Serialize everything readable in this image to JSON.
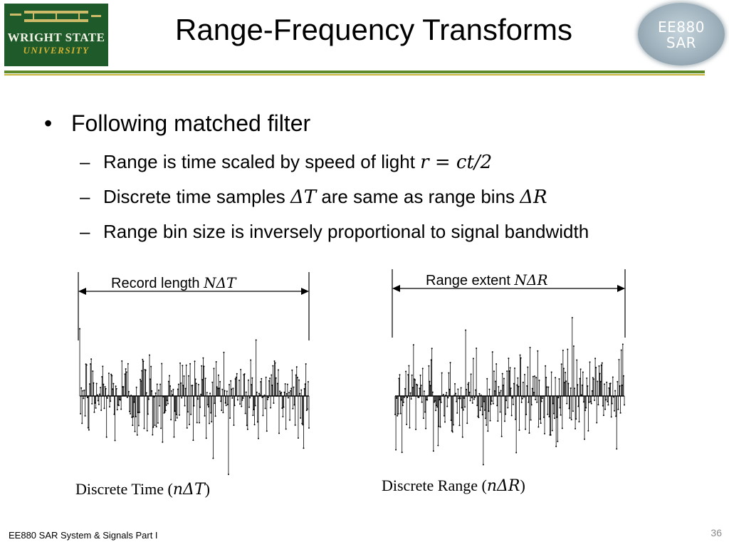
{
  "header": {
    "logo_line1": "WRIGHT STATE",
    "logo_line2": "UNIVERSITY",
    "title": "Range-Frequency Transforms",
    "badge_line1": "EE880",
    "badge_line2": "SAR"
  },
  "bullets": {
    "main": "Following matched filter",
    "sub1": {
      "text": "Range is time scaled by speed of light ",
      "math": "r = ct/2"
    },
    "sub2": {
      "text_a": "Discrete time samples ",
      "math_a": "ΔT",
      "text_b": " are same as range bins ",
      "math_b": "ΔR"
    },
    "sub3": {
      "text": "Range bin size is inversely proportional to signal bandwidth"
    },
    "bullet_char": "•",
    "dash_char": "–"
  },
  "figures": {
    "left": {
      "label_text": "Record length ",
      "label_math": "NΔT",
      "caption_a": "Discrete Time (",
      "caption_math": "nΔT",
      "caption_b": ")"
    },
    "right": {
      "label_text": "Range extent ",
      "label_math": "NΔR",
      "caption_a": "Discrete Range (",
      "caption_math": "nΔR",
      "caption_b": ")"
    }
  },
  "footer": {
    "text": "EE880 SAR System & Signals Part I",
    "page": "36"
  }
}
